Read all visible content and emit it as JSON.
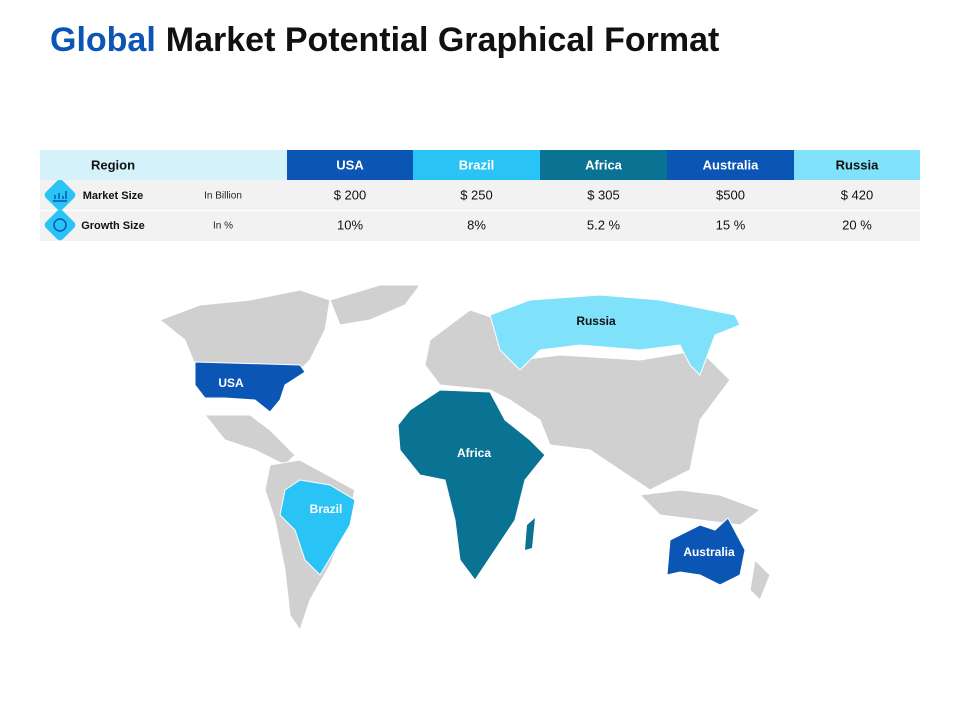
{
  "header": {
    "title_accent": "Global",
    "title_rest": "Market Potential Graphical Format"
  },
  "table": {
    "columns": [
      "Region",
      "USA",
      "Brazil",
      "Africa",
      "Australia",
      "Russia"
    ],
    "column_colors": [
      "#d5f2fb",
      "#0b55b4",
      "#29c4f5",
      "#0a7394",
      "#0b55b4",
      "#80e1fb"
    ],
    "rows": [
      [
        "Market Size",
        "In Billion",
        "$ 200",
        "$ 250",
        "$ 305",
        "$500",
        "$ 420"
      ],
      [
        "Growth Size",
        "In %",
        "10%",
        "8%",
        "5.2 %",
        "15 %",
        "20 %"
      ]
    ]
  },
  "map": {
    "labels": [
      "USA",
      "Brazil",
      "Africa",
      "Australia",
      "Russia"
    ]
  }
}
